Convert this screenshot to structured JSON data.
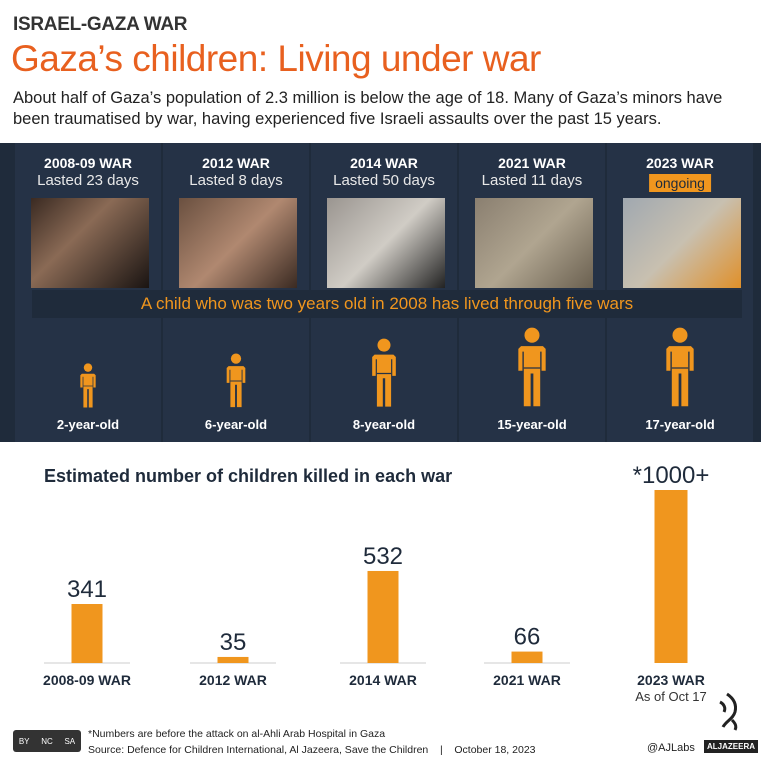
{
  "header": {
    "kicker": "ISRAEL-GAZA WAR",
    "title": "Gaza’s children: Living under war",
    "intro": "About half of Gaza’s population of 2.3 million is below the age of 18. Many of Gaza’s minors have been traumatised by war, having experienced five Israeli assaults over the past 15 years."
  },
  "wars": [
    {
      "name": "2008-09 WAR",
      "duration": "Lasted 23 days",
      "age": "2-year-old"
    },
    {
      "name": "2012 WAR",
      "duration": "Lasted 8 days",
      "age": "6-year-old"
    },
    {
      "name": "2014 WAR",
      "duration": "Lasted 50 days",
      "age": "8-year-old"
    },
    {
      "name": "2021 WAR",
      "duration": "Lasted 11 days",
      "age": "15-year-old"
    },
    {
      "name": "2023 WAR",
      "duration": "ongoing",
      "age": "17-year-old"
    }
  ],
  "banner": "A child who was two years old in 2008 has lived through five wars",
  "chart_data": {
    "type": "bar",
    "title": "Estimated number of children killed in each war",
    "categories": [
      "2008-09 WAR",
      "2012 WAR",
      "2014 WAR",
      "2021 WAR",
      "2023 WAR"
    ],
    "values": [
      341,
      35,
      532,
      66,
      1000
    ],
    "data_labels": [
      "341",
      "35",
      "532",
      "66",
      "*1000+"
    ],
    "sublabels": [
      "",
      "",
      "",
      "",
      "As of Oct 17"
    ],
    "ylim": [
      0,
      1000
    ],
    "color": "#f0961e"
  },
  "footer": {
    "note": "*Numbers are before the attack on al-Ahli Arab Hospital in Gaza",
    "source": "Source: Defence for Children International, Al Jazeera, Save the Children",
    "separator": "|",
    "date": "October 18, 2023",
    "handle": "@AJLabs",
    "brand": "ALJAZEERA",
    "license": [
      "BY",
      "NC",
      "SA"
    ]
  },
  "colors": {
    "accent": "#f0961e",
    "title": "#e8601f",
    "dark": "#1f2b3b"
  }
}
